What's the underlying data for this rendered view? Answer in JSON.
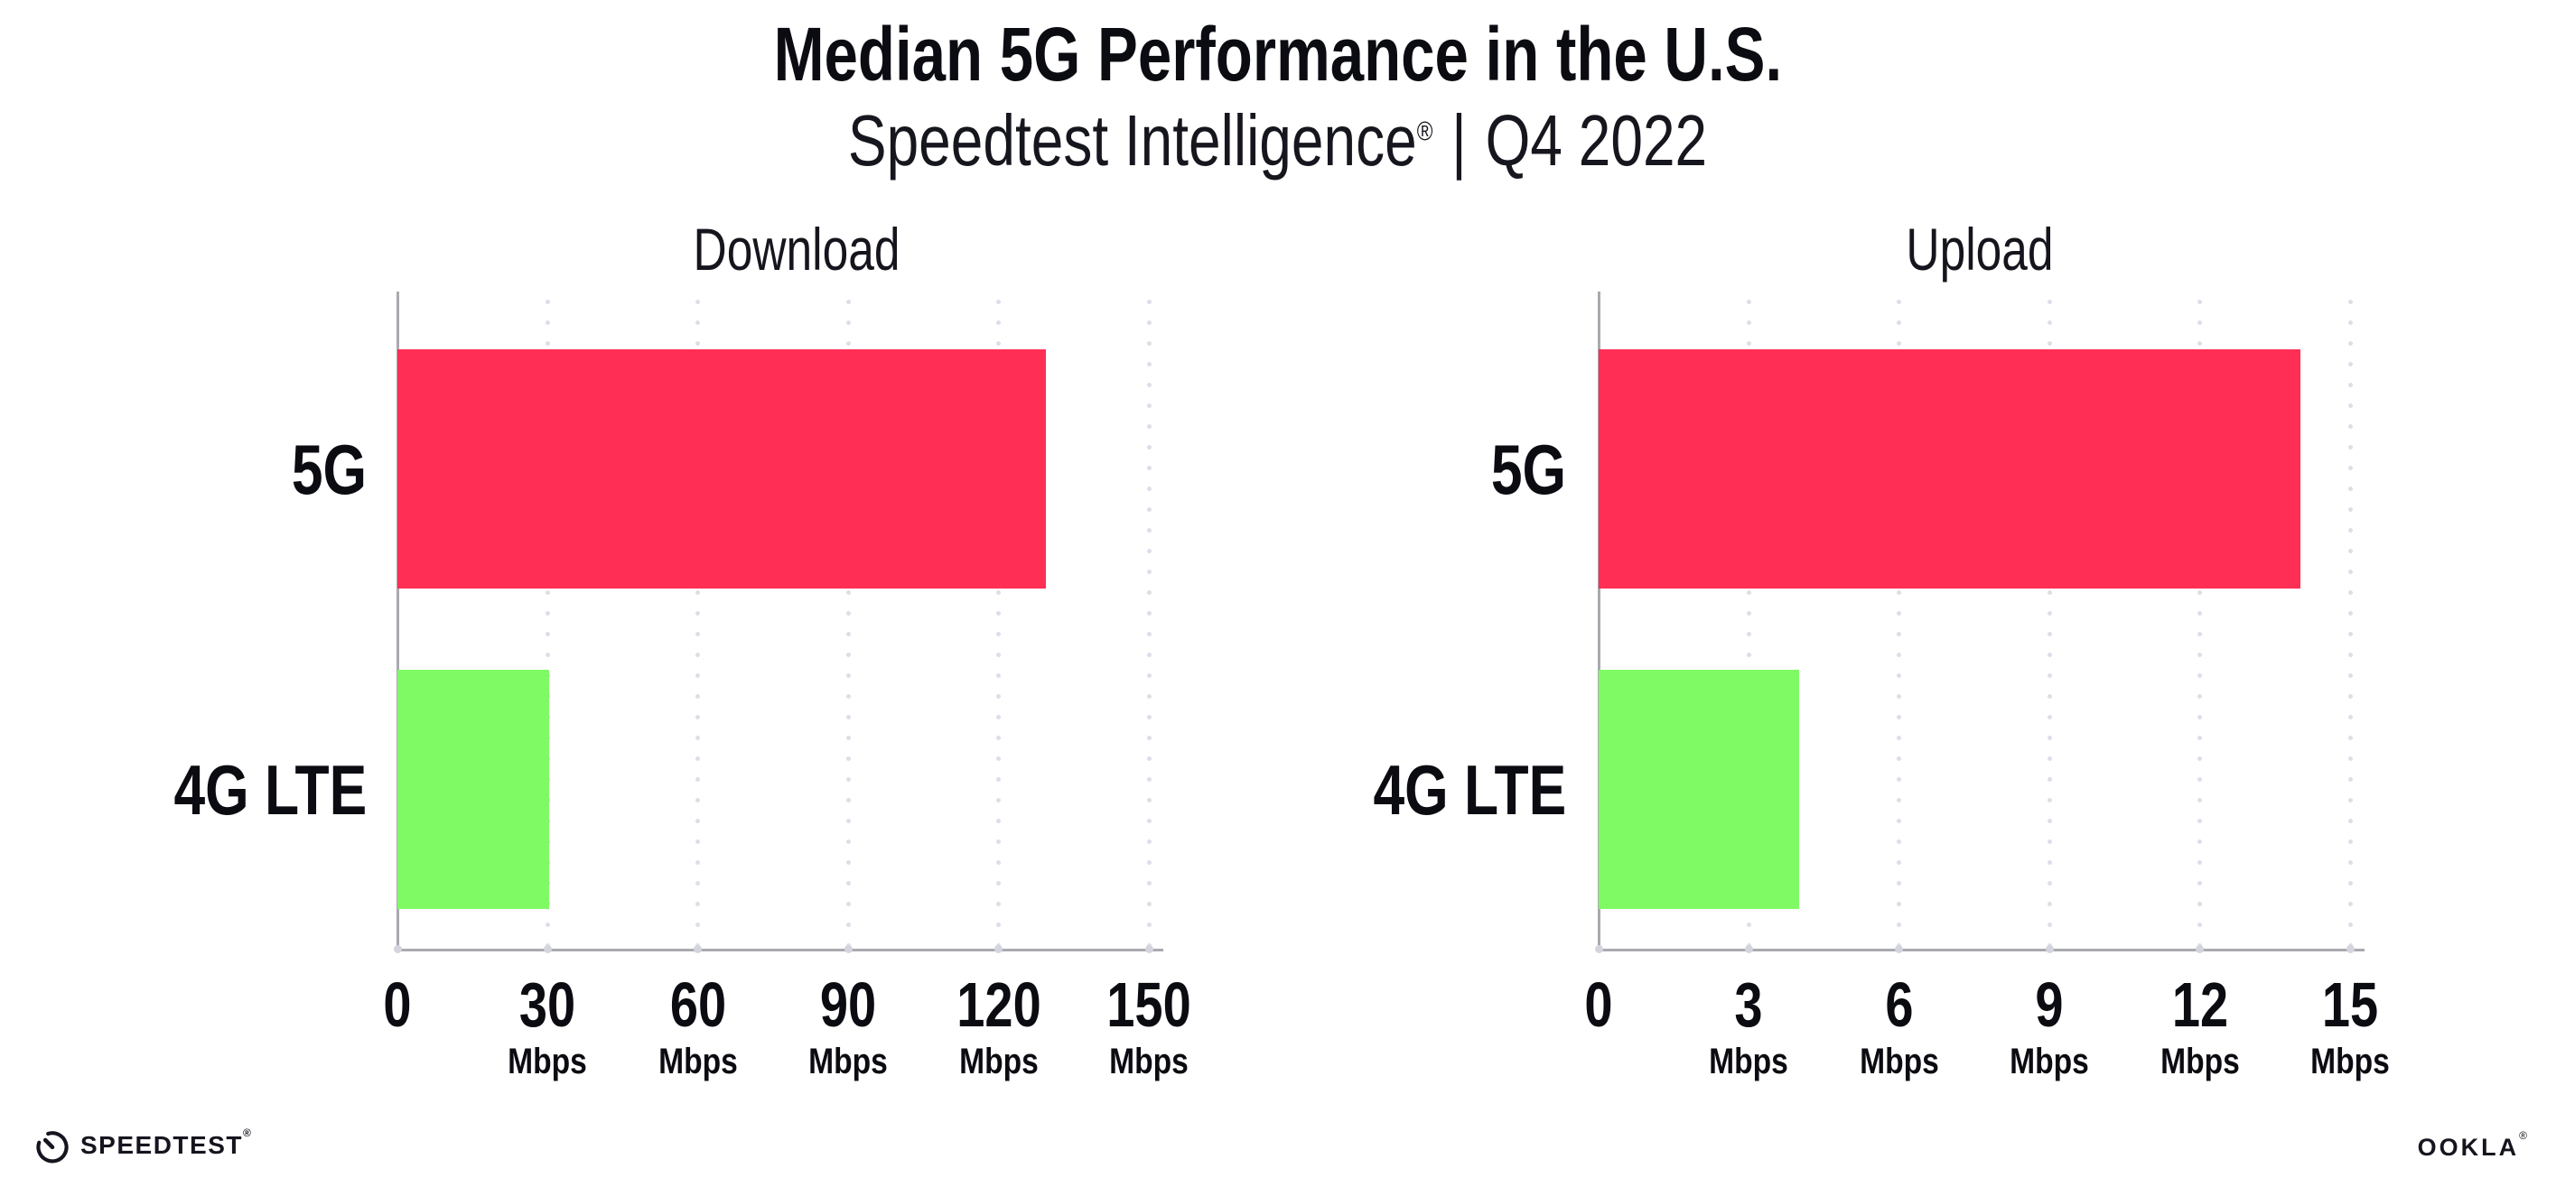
{
  "header": {
    "title": "Median 5G Performance in the U.S.",
    "subtitle_brand": "Speedtest Intelligence",
    "subtitle_reg": "®",
    "subtitle_separator": "|",
    "subtitle_period": "Q4 2022"
  },
  "chart_data": [
    {
      "type": "bar",
      "orientation": "horizontal",
      "title": "Download",
      "categories": [
        "5G",
        "4G LTE"
      ],
      "values": [
        129.5,
        30.2
      ],
      "unit": "Mbps",
      "xlim": [
        0,
        150
      ],
      "xticks": [
        0,
        30,
        60,
        90,
        120,
        150
      ],
      "tick_unit_label": "Mbps",
      "bar_colors": [
        "#FF2E55",
        "#80FA64"
      ],
      "grid": "dotted-vertical",
      "legend": "none"
    },
    {
      "type": "bar",
      "orientation": "horizontal",
      "title": "Upload",
      "categories": [
        "5G",
        "4G LTE"
      ],
      "values": [
        14.0,
        4.0
      ],
      "unit": "Mbps",
      "xlim": [
        0,
        15
      ],
      "xticks": [
        0,
        3,
        6,
        9,
        12,
        15
      ],
      "tick_unit_label": "Mbps",
      "bar_colors": [
        "#FF2E55",
        "#80FA64"
      ],
      "grid": "dotted-vertical",
      "legend": "none"
    }
  ],
  "footer": {
    "speedtest_logo_text": "SPEEDTEST",
    "speedtest_mark": "®",
    "ookla_logo_text": "OOKLA",
    "ookla_mark": "®"
  },
  "colors": {
    "background": "#FFFFFF",
    "bar_5g_pink": "#FF2E55",
    "bar_4g_green": "#80FA64",
    "axis_line": "#A9A9B0",
    "grid_dot": "#DEDEE8",
    "tick_dot": "#D4D4DE",
    "text_dark": "#0B0B12"
  }
}
